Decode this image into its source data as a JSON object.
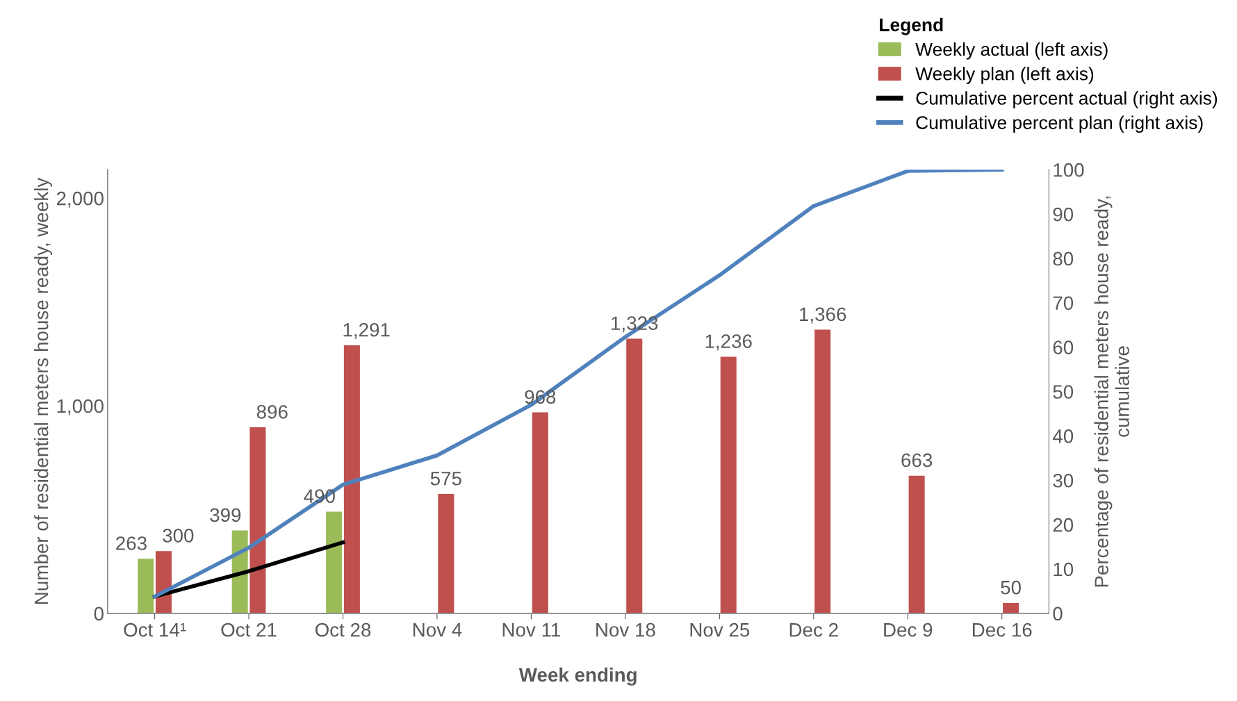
{
  "chart_data": {
    "type": "bar",
    "xlabel": "Week ending",
    "ylabel": "Number of residential meters house ready, weekly",
    "y2label": "Percentage of residential meters house ready,\ncumulative",
    "legend_title": "Legend",
    "legend": "top right",
    "categories": [
      "Oct 14¹",
      "Oct 21",
      "Oct 28",
      "Nov 4",
      "Nov 11",
      "Nov 18",
      "Nov 25",
      "Dec 2",
      "Dec 9",
      "Dec 16"
    ],
    "series": [
      {
        "name": "Weekly actual (left axis)",
        "color": "#9bbb59",
        "values": [
          263,
          399,
          490,
          null,
          null,
          null,
          null,
          null,
          null,
          null
        ],
        "value_labels": [
          "263",
          "399",
          "490",
          null,
          null,
          null,
          null,
          null,
          null,
          null
        ]
      },
      {
        "name": "Weekly plan (left axis)",
        "color": "#c0504d",
        "values": [
          300,
          896,
          1291,
          575,
          968,
          1323,
          1236,
          1366,
          663,
          50
        ],
        "value_labels": [
          "300",
          "896",
          "1,291",
          "575",
          "968",
          "1,323",
          "1,236",
          "1,366",
          "663",
          "50"
        ]
      },
      {
        "name": "Cumulative percent actual (right axis)",
        "type": "line",
        "axis": "y2",
        "color": "#000000",
        "values": [
          3.8,
          9.5,
          16,
          null,
          null,
          null,
          null,
          null,
          null,
          null
        ]
      },
      {
        "name": "Cumulative percent plan (right axis)",
        "type": "line",
        "axis": "y2",
        "color": "#4f81bd",
        "values": [
          3.8,
          14.8,
          29,
          35.6,
          47,
          62.3,
          76.2,
          91.8,
          99.7,
          100
        ]
      }
    ],
    "ylim": [
      0,
      2137
    ],
    "yticks": [
      0,
      {
        "value": 1000,
        "label": "1,000"
      },
      {
        "value": 2000,
        "label": "2,000"
      }
    ],
    "y2lim": [
      0,
      100
    ],
    "y2ticks": [
      0,
      10,
      20,
      30,
      40,
      50,
      60,
      70,
      80,
      90,
      100
    ],
    "grid": false
  }
}
